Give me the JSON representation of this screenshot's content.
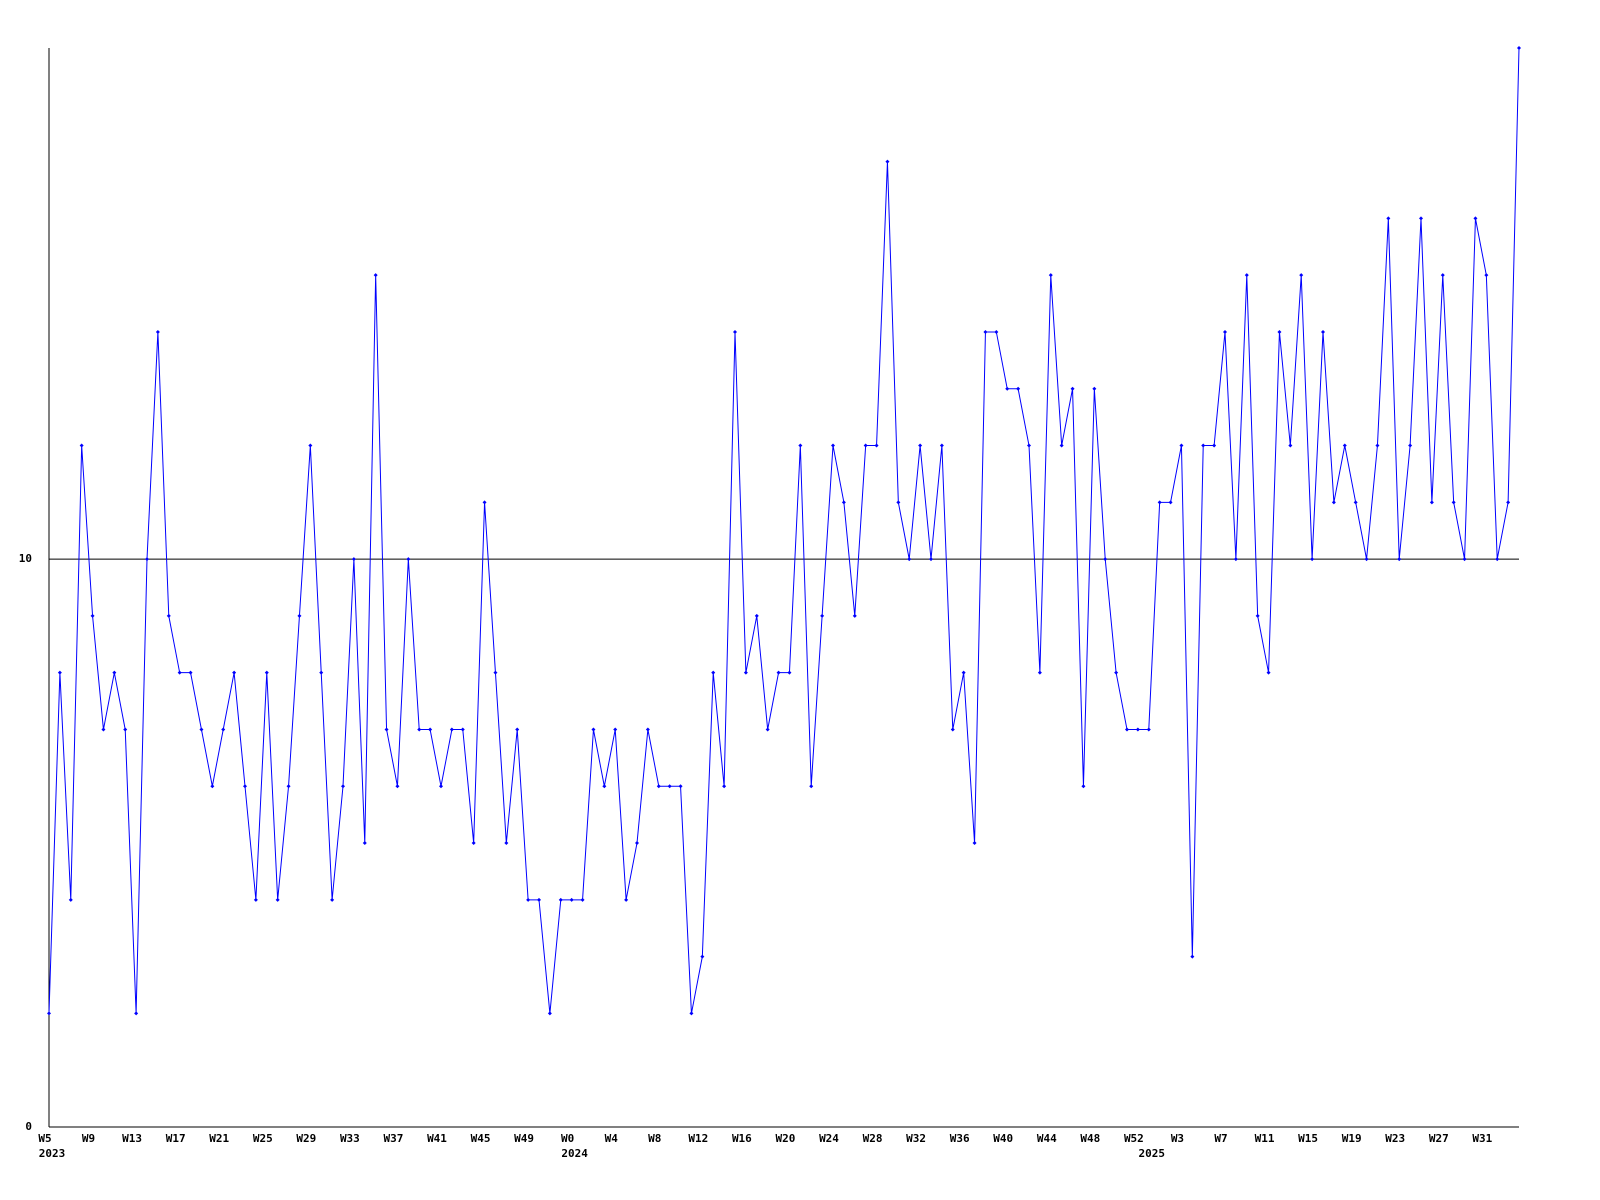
{
  "chart_data": {
    "type": "line",
    "categories": [
      "W5",
      null,
      null,
      null,
      "W9",
      null,
      null,
      null,
      "W13",
      null,
      null,
      null,
      "W17",
      null,
      null,
      null,
      "W21",
      null,
      null,
      null,
      "W25",
      null,
      null,
      null,
      "W29",
      null,
      null,
      null,
      "W33",
      null,
      null,
      null,
      "W37",
      null,
      null,
      null,
      "W41",
      null,
      null,
      null,
      "W45",
      null,
      null,
      null,
      "W49",
      null,
      null,
      null,
      "W0",
      null,
      null,
      null,
      "W4",
      null,
      null,
      null,
      "W8",
      null,
      null,
      null,
      "W12",
      null,
      null,
      null,
      "W16",
      null,
      null,
      null,
      "W20",
      null,
      null,
      null,
      "W24",
      null,
      null,
      null,
      "W28",
      null,
      null,
      null,
      "W32",
      null,
      null,
      null,
      "W36",
      null,
      null,
      null,
      "W40",
      null,
      null,
      null,
      "W44",
      null,
      null,
      null,
      "W48",
      null,
      null,
      null,
      "W52",
      null,
      null,
      null,
      "W3",
      null,
      null,
      null,
      "W7",
      null,
      null,
      null,
      "W11",
      null,
      null,
      null,
      "W15",
      null,
      null,
      null,
      "W19",
      null,
      null,
      null,
      "W23",
      null,
      null,
      null,
      "W27",
      null,
      null,
      null,
      "W31",
      null,
      null,
      null
    ],
    "year_labels": [
      "2023",
      null,
      null,
      null,
      null,
      null,
      null,
      null,
      null,
      null,
      null,
      null,
      null,
      null,
      null,
      null,
      null,
      null,
      null,
      null,
      null,
      null,
      null,
      null,
      null,
      null,
      null,
      null,
      null,
      null,
      null,
      null,
      null,
      null,
      null,
      null,
      null,
      null,
      null,
      null,
      null,
      null,
      null,
      null,
      null,
      null,
      null,
      null,
      "2024",
      null,
      null,
      null,
      null,
      null,
      null,
      null,
      null,
      null,
      null,
      null,
      null,
      null,
      null,
      null,
      null,
      null,
      null,
      null,
      null,
      null,
      null,
      null,
      null,
      null,
      null,
      null,
      null,
      null,
      null,
      null,
      null,
      null,
      null,
      null,
      null,
      null,
      null,
      null,
      null,
      null,
      null,
      null,
      null,
      null,
      null,
      null,
      null,
      null,
      null,
      null,
      null,
      "2025",
      null,
      null,
      null,
      null,
      null,
      null,
      null,
      null,
      null,
      null,
      null,
      null,
      null,
      null,
      null,
      null,
      null,
      null,
      null,
      null,
      null,
      null,
      null,
      null,
      null,
      null,
      null,
      null,
      null,
      null,
      null,
      null,
      null,
      null
    ],
    "series": [
      {
        "color": "#0000ff",
        "values": [
          2,
          8,
          4,
          12,
          9,
          7,
          8,
          7,
          2,
          10,
          14,
          9,
          8,
          8,
          7,
          6,
          7,
          8,
          6,
          4,
          8,
          4,
          6,
          9,
          12,
          8,
          4,
          6,
          10,
          5,
          15,
          7,
          6,
          10,
          7,
          7,
          6,
          7,
          7,
          5,
          11,
          8,
          5,
          7,
          4,
          4,
          2,
          4,
          4,
          4,
          7,
          6,
          7,
          4,
          5,
          7,
          6,
          6,
          6,
          2,
          3,
          8,
          6,
          14,
          8,
          9,
          7,
          8,
          8,
          12,
          6,
          9,
          12,
          11,
          9,
          12,
          12,
          17,
          11,
          10,
          12,
          10,
          12,
          7,
          8,
          5,
          14,
          14,
          13,
          13,
          12,
          8,
          15,
          12,
          13,
          6,
          13,
          10,
          8,
          7,
          7,
          7,
          11,
          11,
          12,
          3,
          12,
          12,
          14,
          10,
          15,
          9,
          8,
          14,
          12,
          15,
          10,
          14,
          11,
          12,
          11,
          10,
          12,
          16,
          10,
          12,
          16,
          11,
          15,
          11,
          10,
          16,
          15,
          10,
          11,
          19
        ]
      }
    ],
    "ylim": [
      0,
      19
    ],
    "yticks": [
      0,
      10
    ],
    "grid": true
  }
}
